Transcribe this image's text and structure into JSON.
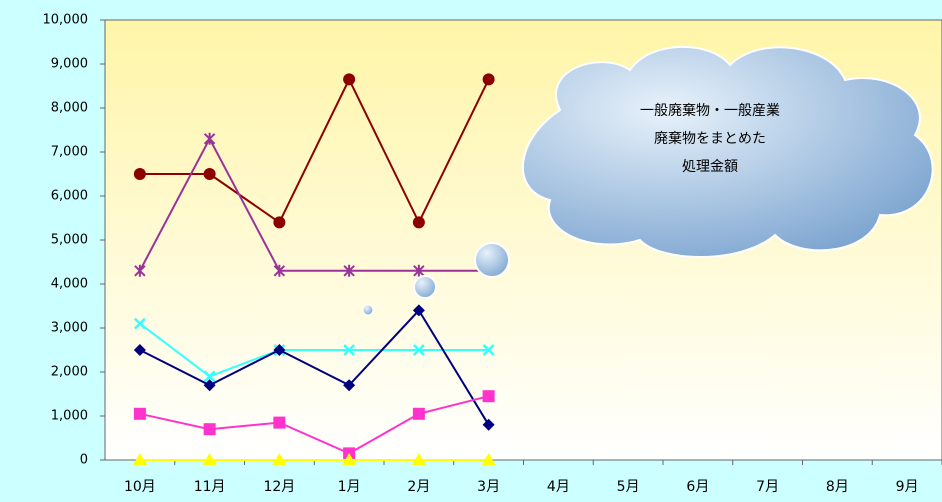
{
  "chart_data": {
    "type": "line",
    "annotation": [
      "一般廃棄物・一般産業",
      "廃棄物をまとめた",
      "処理金額"
    ],
    "categories": [
      "10月",
      "11月",
      "12月",
      "1月",
      "2月",
      "3月",
      "4月",
      "5月",
      "6月",
      "7月",
      "8月",
      "9月"
    ],
    "series": [
      {
        "color": "#8b0000",
        "marker": "circle",
        "values": [
          6500,
          6500,
          5400,
          8650,
          5400,
          8650,
          null,
          null,
          null,
          null,
          null,
          null
        ]
      },
      {
        "color": "#993399",
        "marker": "star",
        "values": [
          4300,
          7300,
          4300,
          4300,
          4300,
          4300,
          null,
          null,
          null,
          null,
          null,
          null
        ]
      },
      {
        "color": "#33ffff",
        "marker": "x",
        "values": [
          3100,
          1900,
          2500,
          2500,
          2500,
          2500,
          null,
          null,
          null,
          null,
          null,
          null
        ]
      },
      {
        "color": "#000080",
        "marker": "diamond",
        "values": [
          2500,
          1700,
          2500,
          1700,
          3400,
          800,
          null,
          null,
          null,
          null,
          null,
          null
        ]
      },
      {
        "color": "#ff33cc",
        "marker": "square",
        "values": [
          1050,
          700,
          850,
          150,
          1050,
          1450,
          null,
          null,
          null,
          null,
          null,
          null
        ]
      },
      {
        "color": "#ffff00",
        "marker": "triangle",
        "values": [
          0,
          0,
          0,
          0,
          0,
          0,
          null,
          null,
          null,
          null,
          null,
          null
        ]
      }
    ],
    "ylim": [
      0,
      10000
    ],
    "yticks": [
      0,
      {
        "value": 1000,
        "label": "1,000"
      },
      {
        "value": 2000,
        "label": "2,000"
      },
      {
        "value": 3000,
        "label": "3,000"
      },
      {
        "value": 4000,
        "label": "4,000"
      },
      {
        "value": 5000,
        "label": "5,000"
      },
      {
        "value": 6000,
        "label": "6,000"
      },
      {
        "value": 7000,
        "label": "7,000"
      },
      {
        "value": 8000,
        "label": "8,000"
      },
      {
        "value": 9000,
        "label": "9,000"
      },
      {
        "value": 10000,
        "label": "10,000"
      }
    ]
  }
}
